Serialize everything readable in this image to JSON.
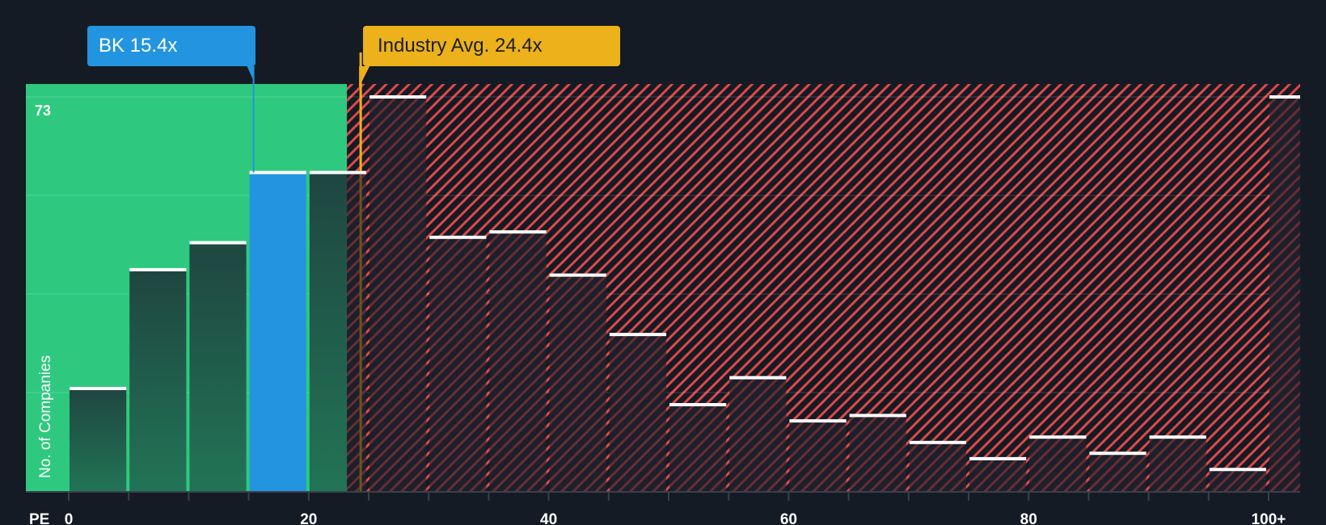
{
  "callouts": {
    "company": {
      "label": "BK 15.4x",
      "value": 15.4,
      "color": "#2394df"
    },
    "industry": {
      "label": "Industry Avg. 24.4x",
      "value": 24.4,
      "color": "#ecb11b"
    }
  },
  "axis": {
    "x_title": "PE",
    "y_title": "No. of Companies",
    "y_max_label": "73",
    "x_tick_labels": [
      {
        "value": 0,
        "label": "0"
      },
      {
        "value": 20,
        "label": "20"
      },
      {
        "value": 40,
        "label": "40"
      },
      {
        "value": 60,
        "label": "60"
      },
      {
        "value": 80,
        "label": "80"
      },
      {
        "value": 100,
        "label": "100+"
      }
    ]
  },
  "colors": {
    "background": "#151b24",
    "undervalued_zone": "#2ec97f",
    "overvalued_hatch": "#e04848",
    "company_bar": "#2394df",
    "bar_fill_green_zone": "#1f4b3e",
    "bar_fill_red_zone": "#1c202b",
    "bar_cap": "#ffffff",
    "axis_line": "#3a404b",
    "gridline": "rgba(255,255,255,0.12)"
  },
  "chart_data": {
    "type": "bar",
    "title": "",
    "xlabel": "PE",
    "ylabel": "No. of Companies",
    "categories": [
      "0-5",
      "5-10",
      "10-15",
      "15-20",
      "20-25",
      "25-30",
      "30-35",
      "35-40",
      "40-45",
      "45-50",
      "50-55",
      "55-60",
      "60-65",
      "65-70",
      "70-75",
      "75-80",
      "80-85",
      "85-90",
      "90-95",
      "95-100",
      "100+"
    ],
    "values": [
      19,
      41,
      46,
      59,
      59,
      73,
      47,
      48,
      40,
      29,
      16,
      21,
      13,
      14,
      9,
      6,
      10,
      7,
      10,
      4,
      73
    ],
    "bin_width": 5,
    "ylim": [
      0,
      73
    ],
    "y_gridlines": [
      18.25,
      36.5,
      54.75,
      73
    ],
    "x_ticks": [
      0,
      20,
      40,
      60,
      80,
      100
    ],
    "highlight_bin_index": 3,
    "company_pe": 15.4,
    "industry_avg_pe": 24.4,
    "annotations": [
      "BK 15.4x",
      "Industry Avg. 24.4x",
      "73"
    ],
    "legend": null,
    "grid": true
  }
}
